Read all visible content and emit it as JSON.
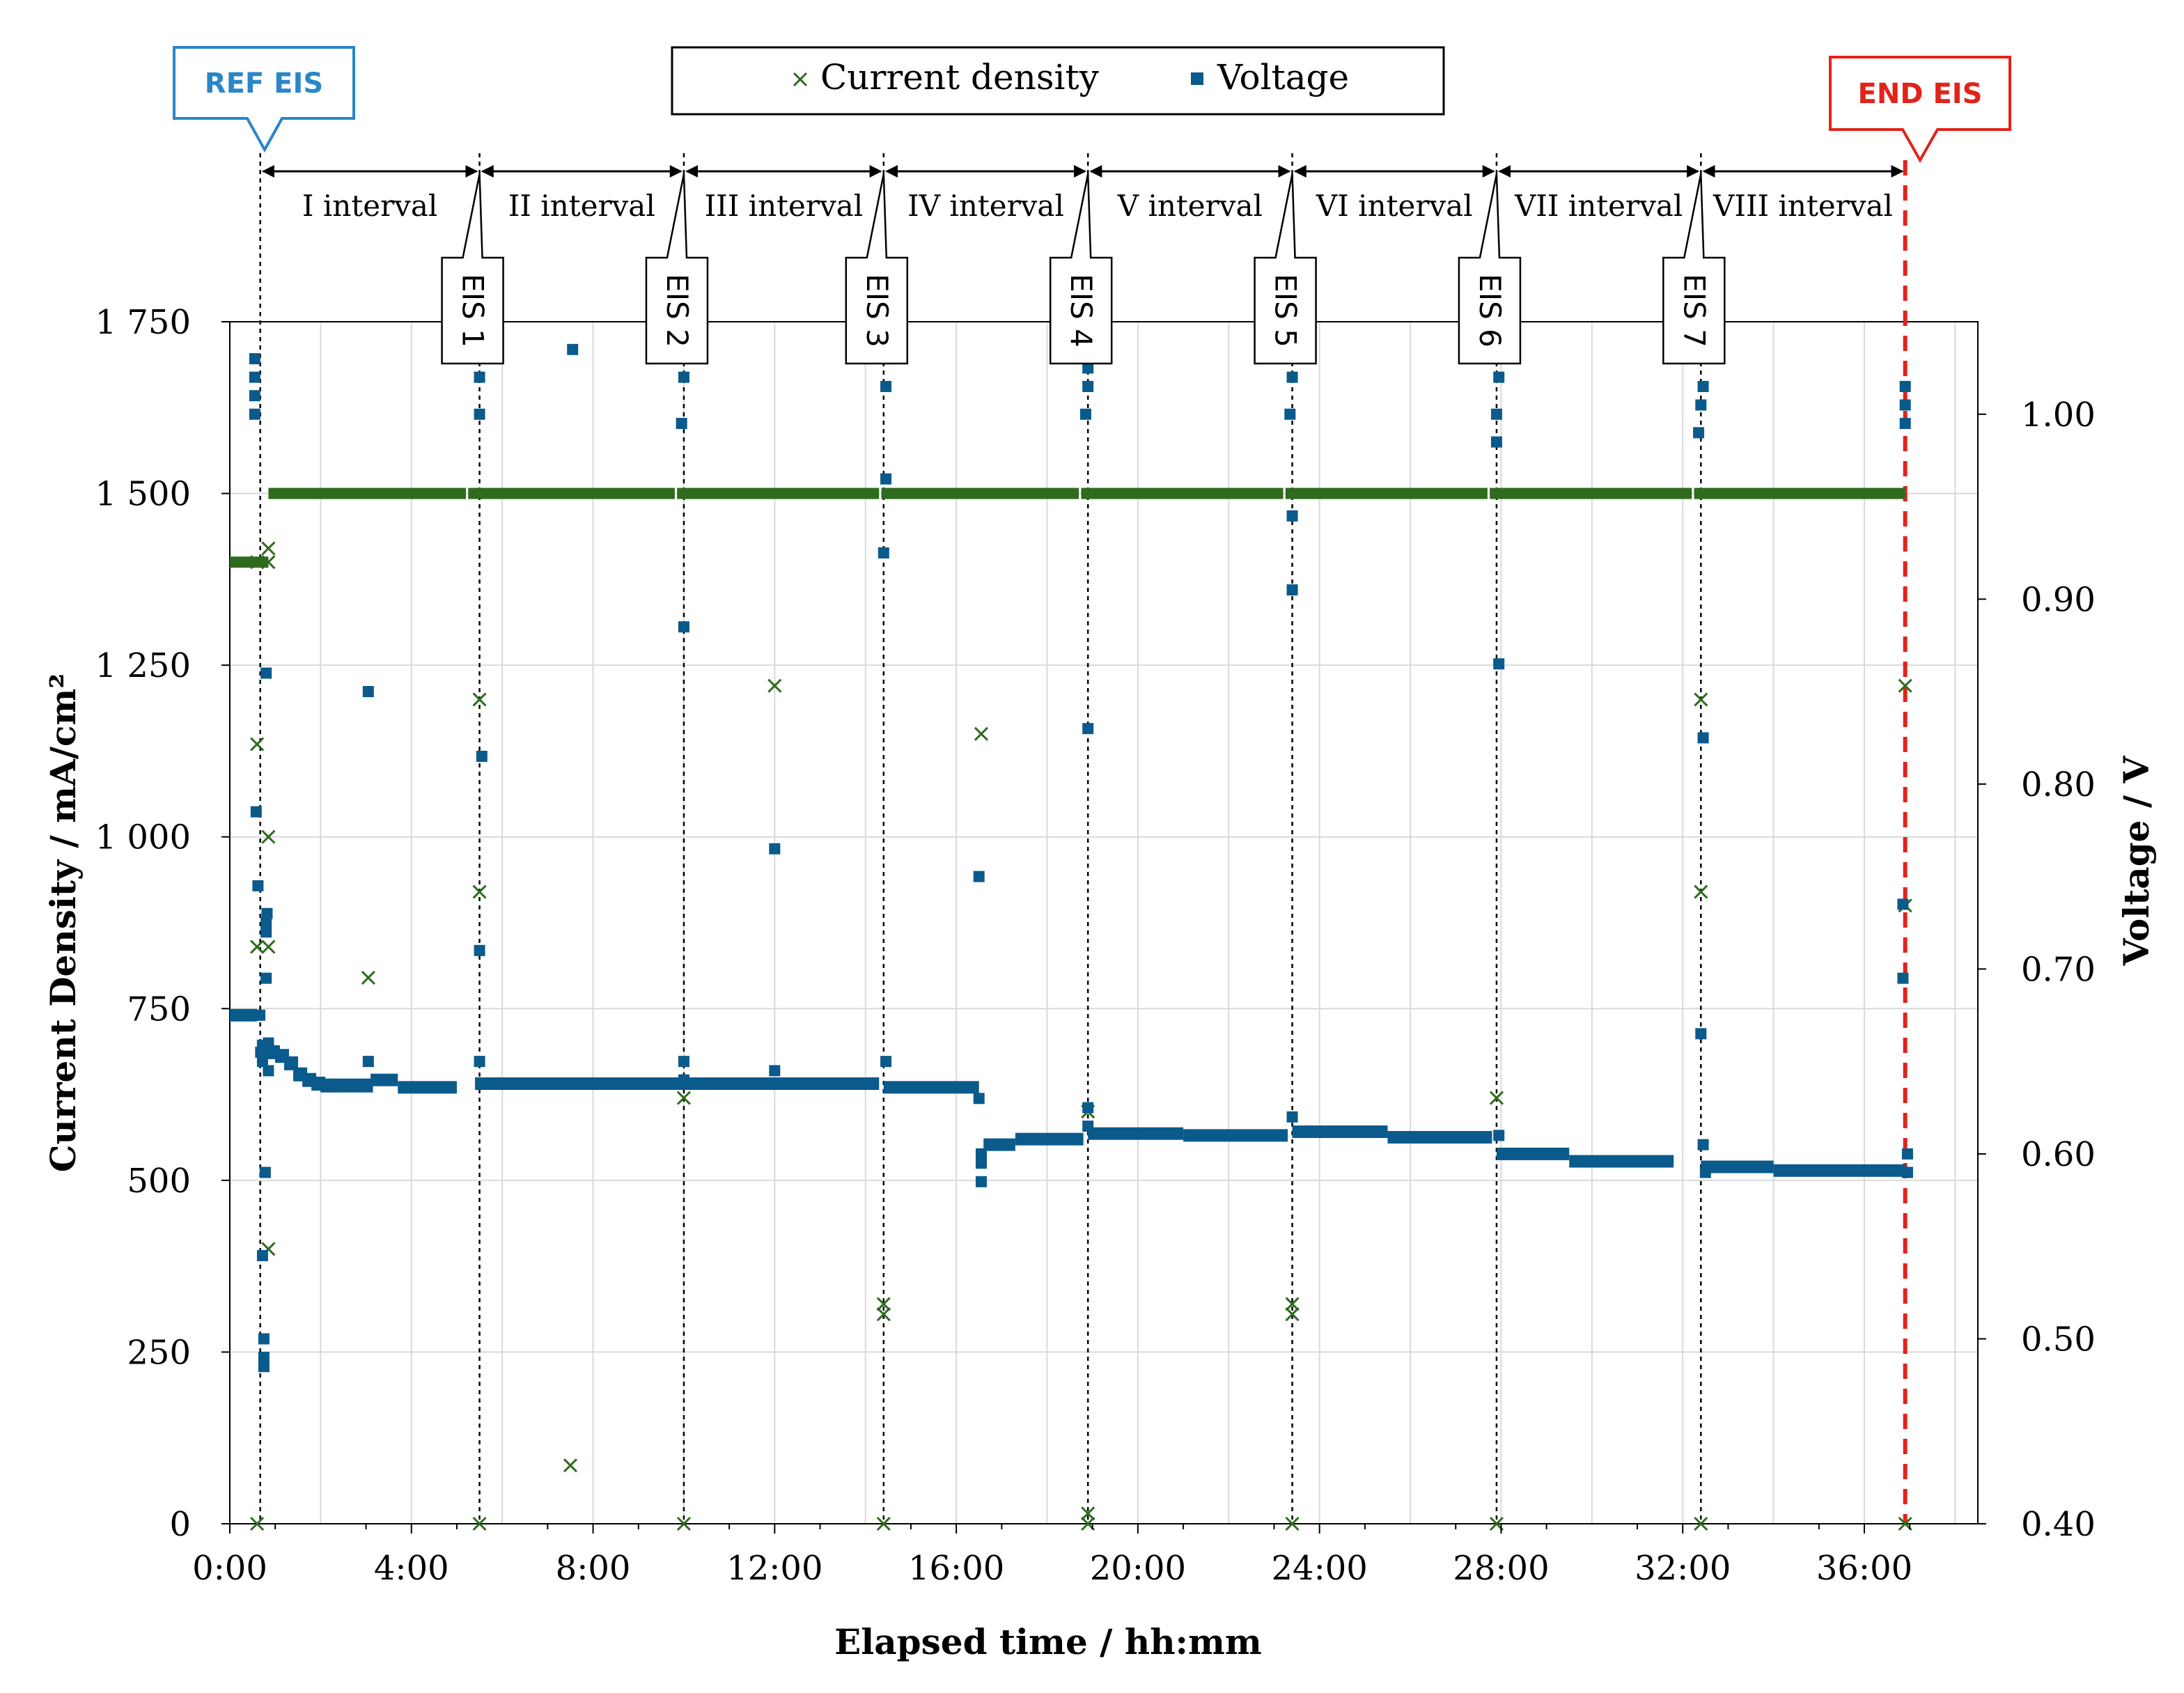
{
  "legend": {
    "current_label": "Current density",
    "voltage_label": "Voltage"
  },
  "markers": {
    "ref": "REF EIS",
    "end": "END EIS",
    "eis": [
      "EIS 1",
      "EIS 2",
      "EIS 3",
      "EIS 4",
      "EIS 5",
      "EIS 6",
      "EIS 7"
    ],
    "intervals": [
      "I interval",
      "II interval",
      "III interval",
      "IV interval",
      "V interval",
      "VI interval",
      "VII interval",
      "VIII interval"
    ],
    "eis_times_h": [
      0.67,
      5.5,
      10.0,
      14.4,
      18.9,
      23.4,
      27.9,
      32.4,
      36.9
    ]
  },
  "colors": {
    "current": "#2e6b1e",
    "voltage": "#0b5a8c",
    "ref": "#2a86c8",
    "end": "#e2231a",
    "grid": "#d9d9d9",
    "axis": "#000000"
  },
  "chart_data": {
    "type": "scatter",
    "xlabel": "Elapsed time / hh:mm",
    "ylabel": "Current Density / mA/cm²",
    "y2label": "Voltage / V",
    "xlim_h": [
      0,
      38.5
    ],
    "ylim": [
      0,
      1750
    ],
    "y2lim": [
      0.4,
      1.05
    ],
    "x_ticks": [
      "0:00",
      "4:00",
      "8:00",
      "12:00",
      "16:00",
      "20:00",
      "24:00",
      "28:00",
      "32:00",
      "36:00"
    ],
    "x_tick_values_h": [
      0,
      4,
      8,
      12,
      16,
      20,
      24,
      28,
      32,
      36
    ],
    "y_ticks": [
      "0",
      "250",
      "500",
      "750",
      "1 000",
      "1 250",
      "1 500",
      "1 750"
    ],
    "y_tick_values": [
      0,
      250,
      500,
      750,
      1000,
      1250,
      1500,
      1750
    ],
    "y2_ticks": [
      "0.40",
      "0.50",
      "0.60",
      "0.70",
      "0.80",
      "0.90",
      "1.00"
    ],
    "y2_tick_values": [
      0.4,
      0.5,
      0.6,
      0.7,
      0.8,
      0.9,
      1.0
    ],
    "series": [
      {
        "name": "Current density",
        "axis": "left",
        "marker": "x",
        "baseline_segments": [
          {
            "from_h": 0.0,
            "to_h": 0.85,
            "value": 1400
          },
          {
            "from_h": 0.85,
            "to_h": 5.2,
            "value": 1500
          },
          {
            "from_h": 5.25,
            "to_h": 9.8,
            "value": 1500
          },
          {
            "from_h": 9.85,
            "to_h": 14.3,
            "value": 1500
          },
          {
            "from_h": 14.35,
            "to_h": 18.7,
            "value": 1500
          },
          {
            "from_h": 18.75,
            "to_h": 23.2,
            "value": 1500
          },
          {
            "from_h": 23.25,
            "to_h": 27.7,
            "value": 1500
          },
          {
            "from_h": 27.75,
            "to_h": 32.2,
            "value": 1500
          },
          {
            "from_h": 32.25,
            "to_h": 36.9,
            "value": 1500
          }
        ],
        "points": [
          [
            0.6,
            0
          ],
          [
            0.6,
            840
          ],
          [
            0.6,
            1135
          ],
          [
            0.6,
            1400
          ],
          [
            0.85,
            400
          ],
          [
            0.85,
            840
          ],
          [
            0.85,
            1000
          ],
          [
            0.85,
            1420
          ],
          [
            0.85,
            1400
          ],
          [
            3.05,
            795
          ],
          [
            5.5,
            0
          ],
          [
            5.5,
            920
          ],
          [
            5.5,
            1200
          ],
          [
            7.5,
            85
          ],
          [
            10.0,
            0
          ],
          [
            10.0,
            620
          ],
          [
            12.0,
            1220
          ],
          [
            14.4,
            0
          ],
          [
            14.4,
            305
          ],
          [
            14.4,
            320
          ],
          [
            16.55,
            1150
          ],
          [
            18.9,
            0
          ],
          [
            18.9,
            15
          ],
          [
            18.9,
            600
          ],
          [
            23.4,
            0
          ],
          [
            23.4,
            305
          ],
          [
            23.4,
            320
          ],
          [
            27.9,
            0
          ],
          [
            27.9,
            620
          ],
          [
            32.4,
            0
          ],
          [
            32.4,
            920
          ],
          [
            32.4,
            1200
          ],
          [
            36.9,
            0
          ],
          [
            36.9,
            900
          ],
          [
            36.9,
            1220
          ]
        ]
      },
      {
        "name": "Voltage",
        "axis": "right",
        "marker": "square",
        "baseline_segments": [
          {
            "from_h": 0.0,
            "to_h": 0.6,
            "value": 0.675
          },
          {
            "from_h": 3.1,
            "to_h": 3.7,
            "value": 0.64
          },
          {
            "from_h": 3.7,
            "to_h": 5.0,
            "value": 0.636
          },
          {
            "from_h": 5.4,
            "to_h": 14.3,
            "value": 0.638
          },
          {
            "from_h": 14.4,
            "to_h": 16.5,
            "value": 0.636
          },
          {
            "from_h": 16.6,
            "to_h": 17.3,
            "value": 0.605
          },
          {
            "from_h": 17.3,
            "to_h": 18.8,
            "value": 0.608
          },
          {
            "from_h": 18.9,
            "to_h": 21.0,
            "value": 0.611
          },
          {
            "from_h": 21.0,
            "to_h": 23.3,
            "value": 0.61
          },
          {
            "from_h": 23.4,
            "to_h": 25.5,
            "value": 0.612
          },
          {
            "from_h": 25.5,
            "to_h": 27.8,
            "value": 0.609
          },
          {
            "from_h": 27.9,
            "to_h": 29.5,
            "value": 0.6
          },
          {
            "from_h": 29.5,
            "to_h": 31.8,
            "value": 0.596
          },
          {
            "from_h": 32.4,
            "to_h": 34.0,
            "value": 0.593
          },
          {
            "from_h": 34.0,
            "to_h": 36.9,
            "value": 0.591
          }
        ],
        "curve_points": [
          [
            0.75,
            0.658
          ],
          [
            0.95,
            0.655
          ],
          [
            1.15,
            0.653
          ],
          [
            1.35,
            0.649
          ],
          [
            1.55,
            0.643
          ],
          [
            1.75,
            0.64
          ],
          [
            1.95,
            0.638
          ],
          [
            2.15,
            0.637
          ],
          [
            2.4,
            0.637
          ],
          [
            2.7,
            0.637
          ],
          [
            3.0,
            0.637
          ]
        ],
        "points": [
          [
            0.55,
            1.03
          ],
          [
            0.55,
            1.02
          ],
          [
            0.55,
            1.01
          ],
          [
            0.55,
            1.0
          ],
          [
            0.58,
            0.785
          ],
          [
            0.62,
            0.745
          ],
          [
            0.66,
            0.675
          ],
          [
            0.68,
            0.655
          ],
          [
            0.72,
            0.65
          ],
          [
            0.72,
            0.545
          ],
          [
            0.75,
            0.49
          ],
          [
            0.75,
            0.485
          ],
          [
            0.75,
            0.5
          ],
          [
            0.78,
            0.59
          ],
          [
            0.8,
            0.72
          ],
          [
            0.8,
            0.725
          ],
          [
            0.82,
            0.73
          ],
          [
            0.8,
            0.695
          ],
          [
            0.85,
            0.66
          ],
          [
            0.85,
            0.645
          ],
          [
            0.8,
            0.86
          ],
          [
            3.05,
            0.85
          ],
          [
            3.05,
            0.65
          ],
          [
            5.5,
            1.02
          ],
          [
            5.5,
            1.0
          ],
          [
            5.55,
            0.815
          ],
          [
            5.5,
            0.71
          ],
          [
            5.5,
            0.65
          ],
          [
            7.55,
            1.035
          ],
          [
            10.0,
            1.02
          ],
          [
            9.95,
            0.995
          ],
          [
            10.0,
            0.885
          ],
          [
            10.0,
            0.64
          ],
          [
            10.0,
            0.65
          ],
          [
            12.0,
            0.765
          ],
          [
            12.0,
            0.645
          ],
          [
            14.45,
            1.03
          ],
          [
            14.45,
            1.015
          ],
          [
            14.4,
            0.925
          ],
          [
            14.45,
            0.965
          ],
          [
            14.45,
            0.65
          ],
          [
            16.5,
            0.75
          ],
          [
            16.5,
            0.63
          ],
          [
            16.55,
            0.595
          ],
          [
            16.55,
            0.585
          ],
          [
            16.55,
            0.6
          ],
          [
            18.9,
            1.025
          ],
          [
            18.9,
            1.015
          ],
          [
            18.85,
            1.0
          ],
          [
            18.9,
            0.83
          ],
          [
            18.9,
            0.625
          ],
          [
            18.9,
            0.615
          ],
          [
            23.4,
            1.02
          ],
          [
            23.35,
            1.0
          ],
          [
            23.4,
            0.945
          ],
          [
            23.4,
            0.905
          ],
          [
            23.4,
            0.62
          ],
          [
            27.95,
            1.02
          ],
          [
            27.9,
            1.0
          ],
          [
            27.9,
            0.985
          ],
          [
            27.95,
            0.865
          ],
          [
            27.95,
            0.61
          ],
          [
            32.45,
            1.015
          ],
          [
            32.4,
            1.005
          ],
          [
            32.35,
            0.99
          ],
          [
            32.45,
            0.825
          ],
          [
            32.4,
            0.665
          ],
          [
            32.45,
            0.605
          ],
          [
            32.5,
            0.59
          ],
          [
            36.9,
            1.015
          ],
          [
            36.9,
            1.005
          ],
          [
            36.9,
            0.995
          ],
          [
            36.85,
            0.735
          ],
          [
            36.85,
            0.695
          ],
          [
            36.95,
            0.6
          ],
          [
            36.95,
            0.59
          ]
        ]
      }
    ]
  }
}
